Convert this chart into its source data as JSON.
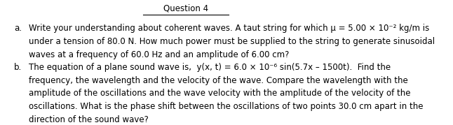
{
  "title": "Question 4",
  "background_color": "#ffffff",
  "text_color": "#000000",
  "font_family": "DejaVu Sans",
  "figsize": [
    6.46,
    1.79
  ],
  "dpi": 100,
  "part_a_label": "a.",
  "part_a_line1": "Write your understanding about coherent waves. A taut string for which μ = 5.00 × 10⁻² kg/m is",
  "part_a_line2": "under a tension of 80.0 N. How much power must be supplied to the string to generate sinusoidal",
  "part_a_line3": "waves at a frequency of 60.0 Hz and an amplitude of 6.00 cm?",
  "part_b_label": "b.",
  "part_b_line1": "The equation of a plane sound wave is,  y(x, t) = 6.0 × 10⁻⁶ sin(5.7x – 1500t).  Find the",
  "part_b_line2": "frequency, the wavelength and the velocity of the wave. Compare the wavelength with the",
  "part_b_line3": "amplitude of the oscillations and the wave velocity with the amplitude of the velocity of the",
  "part_b_line4": "oscillations. What is the phase shift between the oscillations of two points 30.0 cm apart in the",
  "part_b_line5": "direction of the sound wave?"
}
